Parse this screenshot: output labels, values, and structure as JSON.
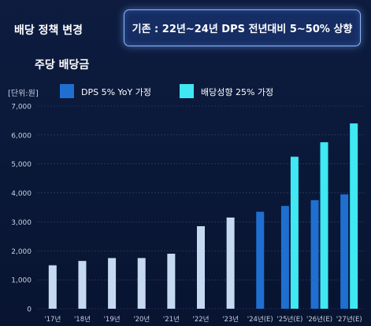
{
  "header": {
    "label": "배당 정책 변경",
    "note": "기존 : 22년~24년 DPS 전년대비 5~50% 상향"
  },
  "colors": {
    "historical": "#c5d9f1",
    "dps_5": "#1f6fd0",
    "div_growth_25": "#3fe8f2",
    "gridline": "#33466e",
    "tick_text": "#c8d2e4"
  },
  "chart_data": {
    "type": "bar",
    "title": "주당 배당금",
    "unit_label": "[단위:원]",
    "categories": [
      "'17년",
      "'18년",
      "'19년",
      "'20년",
      "'21년",
      "'22년",
      "'23년",
      "'24년(E)",
      "'25년(E)",
      "'26년(E)",
      "'27년(E)"
    ],
    "ylim": [
      0,
      7000
    ],
    "yticks": [
      0,
      1000,
      2000,
      3000,
      4000,
      5000,
      6000,
      7000
    ],
    "ytick_labels": [
      "0",
      "1,000",
      "2,000",
      "3,000",
      "4,000",
      "5,000",
      "6,000",
      "7,000"
    ],
    "grid": true,
    "legend_position": "top",
    "historical_values": [
      1500,
      1650,
      1750,
      1750,
      1900,
      2850,
      3150,
      null,
      null,
      null,
      null
    ],
    "series": [
      {
        "name": "DPS 5% YoY 가정",
        "values": [
          null,
          null,
          null,
          null,
          null,
          null,
          null,
          3350,
          3550,
          3750,
          3950
        ]
      },
      {
        "name": "배당성향 25% 가정",
        "values": [
          null,
          null,
          null,
          null,
          null,
          null,
          null,
          null,
          5250,
          5750,
          6400
        ]
      }
    ]
  }
}
